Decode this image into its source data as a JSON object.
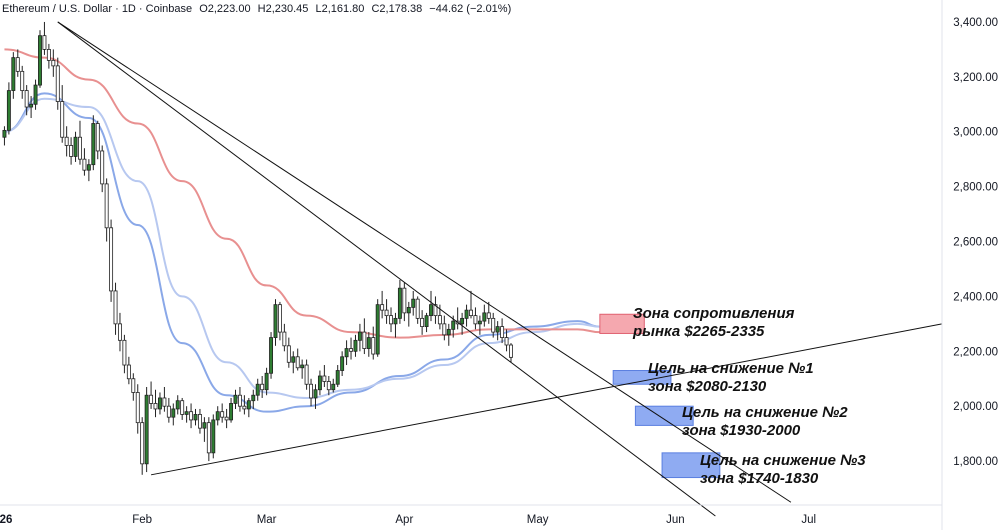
{
  "header": {
    "symbol": "Ethereum / U.S. Dollar · 1D · Coinbase",
    "open": "O2,223.00",
    "high": "H2,230.45",
    "low": "L2,161.80",
    "close": "C2,178.38",
    "change": "−44.62 (−2.01%)"
  },
  "colors": {
    "bull": "#2e7d32",
    "bear": "#ffffff",
    "candle_border": "#222222",
    "ema_fast": "#8aa8e8",
    "ema_slow": "#e89090",
    "resistance_zone": "#f28b94",
    "target_zone": "#7b9cf0",
    "trendline": "#111111"
  },
  "annotations": [
    {
      "line1": "Зона сопротивления",
      "line2": "рынка $2265-2335",
      "zone": [
        2265,
        2335
      ],
      "type": "resistance",
      "from": "2026-05-15",
      "to": "2026-05-25"
    },
    {
      "line1": "Цель на снижение №1",
      "line2": "зона $2080-2130",
      "zone": [
        2080,
        2130
      ],
      "type": "target",
      "from": "2026-05-18",
      "to": "2026-05-31"
    },
    {
      "line1": "Цель на снижение №2",
      "line2": "зона $1930-2000",
      "zone": [
        1930,
        2000
      ],
      "type": "target",
      "from": "2026-05-23",
      "to": "2026-06-05"
    },
    {
      "line1": "Цель на снижение №3",
      "line2": "зона $1740-1830",
      "zone": [
        1740,
        1830
      ],
      "type": "target",
      "from": "2026-05-29",
      "to": "2026-06-11"
    }
  ],
  "chart_data": {
    "type": "candlestick",
    "title": "Ethereum / U.S. Dollar · 1D · Coinbase",
    "x_range": [
      "2025-12-31",
      "2026-07-31"
    ],
    "y_range": [
      1640,
      3480
    ],
    "x_ticks": [
      {
        "label": "26",
        "date": "2026-01-01"
      },
      {
        "label": "Feb",
        "date": "2026-02-01"
      },
      {
        "label": "Mar",
        "date": "2026-03-01"
      },
      {
        "label": "Apr",
        "date": "2026-04-01"
      },
      {
        "label": "May",
        "date": "2026-05-01"
      },
      {
        "label": "Jun",
        "date": "2026-06-01"
      },
      {
        "label": "Jul",
        "date": "2026-07-01"
      }
    ],
    "y_ticks": [
      "3,400.00",
      "3,200.00",
      "3,000.00",
      "2,800.00",
      "2,600.00",
      "2,400.00",
      "2,200.00",
      "2,000.00",
      "1,800.00"
    ],
    "y_tick_values": [
      3400,
      3200,
      3000,
      2800,
      2600,
      2400,
      2200,
      2000,
      1800
    ],
    "candles_start": "2026-01-01",
    "candles": [
      [
        2980,
        3020,
        2950,
        3005
      ],
      [
        3005,
        3180,
        2990,
        3150
      ],
      [
        3150,
        3290,
        3120,
        3270
      ],
      [
        3270,
        3300,
        3200,
        3220
      ],
      [
        3220,
        3240,
        3120,
        3150
      ],
      [
        3150,
        3170,
        3060,
        3090
      ],
      [
        3090,
        3130,
        3050,
        3100
      ],
      [
        3100,
        3190,
        3080,
        3170
      ],
      [
        3170,
        3370,
        3160,
        3350
      ],
      [
        3350,
        3400,
        3280,
        3300
      ],
      [
        3300,
        3320,
        3230,
        3260
      ],
      [
        3260,
        3300,
        3200,
        3240
      ],
      [
        3240,
        3270,
        3080,
        3110
      ],
      [
        3110,
        3170,
        2960,
        2980
      ],
      [
        2980,
        3020,
        2910,
        2950
      ],
      [
        2950,
        2980,
        2880,
        2910
      ],
      [
        2910,
        3000,
        2890,
        2980
      ],
      [
        2980,
        3040,
        2880,
        2900
      ],
      [
        2900,
        2940,
        2840,
        2860
      ],
      [
        2860,
        2900,
        2820,
        2880
      ],
      [
        2880,
        3060,
        2860,
        3030
      ],
      [
        3030,
        3040,
        2900,
        2930
      ],
      [
        2930,
        2950,
        2780,
        2810
      ],
      [
        2810,
        2830,
        2600,
        2650
      ],
      [
        2650,
        2680,
        2380,
        2420
      ],
      [
        2420,
        2450,
        2260,
        2300
      ],
      [
        2300,
        2340,
        2200,
        2240
      ],
      [
        2240,
        2260,
        2120,
        2150
      ],
      [
        2150,
        2180,
        2080,
        2100
      ],
      [
        2100,
        2120,
        2020,
        2050
      ],
      [
        2050,
        2080,
        1900,
        1940
      ],
      [
        1940,
        1960,
        1750,
        1790
      ],
      [
        1790,
        2070,
        1760,
        2040
      ],
      [
        2040,
        2090,
        1990,
        2010
      ],
      [
        2010,
        2060,
        1960,
        1990
      ],
      [
        1990,
        2050,
        1970,
        2030
      ],
      [
        2030,
        2070,
        1980,
        2000
      ],
      [
        2000,
        2030,
        1940,
        1960
      ],
      [
        1960,
        2010,
        1930,
        1990
      ],
      [
        1990,
        2040,
        1970,
        2020
      ],
      [
        2020,
        2030,
        1950,
        1970
      ],
      [
        1970,
        2000,
        1940,
        1980
      ],
      [
        1980,
        2010,
        1920,
        1950
      ],
      [
        1950,
        1990,
        1930,
        1970
      ],
      [
        1970,
        1990,
        1900,
        1920
      ],
      [
        1920,
        1960,
        1870,
        1940
      ],
      [
        1940,
        1960,
        1800,
        1830
      ],
      [
        1830,
        1970,
        1810,
        1950
      ],
      [
        1950,
        2000,
        1930,
        1980
      ],
      [
        1980,
        2010,
        1940,
        1960
      ],
      [
        1960,
        1990,
        1920,
        1950
      ],
      [
        1950,
        2030,
        1940,
        2010
      ],
      [
        2010,
        2060,
        1990,
        2040
      ],
      [
        2040,
        2070,
        1980,
        2000
      ],
      [
        2000,
        2040,
        1970,
        1990
      ],
      [
        1990,
        2030,
        1960,
        2020
      ],
      [
        2020,
        2060,
        1990,
        2040
      ],
      [
        2040,
        2100,
        2020,
        2080
      ],
      [
        2080,
        2110,
        2030,
        2060
      ],
      [
        2060,
        2140,
        2040,
        2120
      ],
      [
        2120,
        2270,
        2100,
        2250
      ],
      [
        2250,
        2390,
        2220,
        2370
      ],
      [
        2370,
        2380,
        2240,
        2270
      ],
      [
        2270,
        2300,
        2200,
        2220
      ],
      [
        2220,
        2250,
        2140,
        2160
      ],
      [
        2160,
        2200,
        2120,
        2180
      ],
      [
        2180,
        2210,
        2130,
        2140
      ],
      [
        2140,
        2170,
        2100,
        2150
      ],
      [
        2150,
        2170,
        2060,
        2080
      ],
      [
        2080,
        2100,
        2000,
        2030
      ],
      [
        2030,
        2080,
        1990,
        2060
      ],
      [
        2060,
        2130,
        2040,
        2110
      ],
      [
        2110,
        2150,
        2070,
        2090
      ],
      [
        2090,
        2110,
        2040,
        2060
      ],
      [
        2060,
        2100,
        2050,
        2080
      ],
      [
        2080,
        2150,
        2070,
        2130
      ],
      [
        2130,
        2200,
        2110,
        2180
      ],
      [
        2180,
        2240,
        2150,
        2210
      ],
      [
        2210,
        2250,
        2170,
        2200
      ],
      [
        2200,
        2260,
        2180,
        2240
      ],
      [
        2240,
        2300,
        2200,
        2270
      ],
      [
        2270,
        2320,
        2190,
        2210
      ],
      [
        2210,
        2270,
        2180,
        2250
      ],
      [
        2250,
        2290,
        2170,
        2190
      ],
      [
        2190,
        2390,
        2180,
        2370
      ],
      [
        2370,
        2420,
        2320,
        2350
      ],
      [
        2350,
        2390,
        2300,
        2330
      ],
      [
        2330,
        2360,
        2270,
        2300
      ],
      [
        2300,
        2340,
        2250,
        2320
      ],
      [
        2320,
        2460,
        2300,
        2430
      ],
      [
        2430,
        2450,
        2310,
        2340
      ],
      [
        2340,
        2380,
        2290,
        2360
      ],
      [
        2360,
        2420,
        2330,
        2390
      ],
      [
        2390,
        2400,
        2300,
        2320
      ],
      [
        2320,
        2350,
        2260,
        2290
      ],
      [
        2290,
        2340,
        2270,
        2330
      ],
      [
        2330,
        2420,
        2310,
        2370
      ],
      [
        2370,
        2400,
        2300,
        2330
      ],
      [
        2330,
        2370,
        2280,
        2300
      ],
      [
        2300,
        2330,
        2240,
        2260
      ],
      [
        2260,
        2300,
        2220,
        2280
      ],
      [
        2280,
        2330,
        2250,
        2310
      ],
      [
        2310,
        2360,
        2280,
        2300
      ],
      [
        2300,
        2340,
        2260,
        2320
      ],
      [
        2320,
        2370,
        2290,
        2350
      ],
      [
        2350,
        2420,
        2320,
        2330
      ],
      [
        2330,
        2360,
        2280,
        2300
      ],
      [
        2300,
        2330,
        2260,
        2310
      ],
      [
        2310,
        2370,
        2290,
        2340
      ],
      [
        2340,
        2380,
        2300,
        2320
      ],
      [
        2320,
        2340,
        2250,
        2270
      ],
      [
        2270,
        2310,
        2240,
        2290
      ],
      [
        2290,
        2320,
        2230,
        2250
      ],
      [
        2250,
        2280,
        2200,
        2223
      ],
      [
        2223,
        2230,
        2160,
        2178
      ]
    ],
    "series": [
      {
        "name": "EMA fast",
        "color": "#8aa8e8",
        "points": [
          [
            "2026-01-01",
            3000
          ],
          [
            "2026-01-10",
            3140
          ],
          [
            "2026-01-20",
            3050
          ],
          [
            "2026-01-31",
            2660
          ],
          [
            "2026-02-10",
            2230
          ],
          [
            "2026-02-20",
            2040
          ],
          [
            "2026-03-01",
            1980
          ],
          [
            "2026-03-10",
            2000
          ],
          [
            "2026-03-20",
            2050
          ],
          [
            "2026-03-31",
            2110
          ],
          [
            "2026-04-10",
            2170
          ],
          [
            "2026-04-20",
            2260
          ],
          [
            "2026-04-30",
            2290
          ],
          [
            "2026-05-10",
            2310
          ],
          [
            "2026-05-15",
            2290
          ]
        ]
      },
      {
        "name": "EMA mid",
        "color": "#b7c8f0",
        "points": [
          [
            "2026-01-01",
            3000
          ],
          [
            "2026-01-10",
            3120
          ],
          [
            "2026-01-20",
            3090
          ],
          [
            "2026-01-31",
            2820
          ],
          [
            "2026-02-10",
            2400
          ],
          [
            "2026-02-20",
            2160
          ],
          [
            "2026-03-01",
            2050
          ],
          [
            "2026-03-10",
            2030
          ],
          [
            "2026-03-20",
            2060
          ],
          [
            "2026-03-31",
            2100
          ],
          [
            "2026-04-10",
            2150
          ],
          [
            "2026-04-20",
            2230
          ],
          [
            "2026-04-30",
            2270
          ],
          [
            "2026-05-10",
            2300
          ],
          [
            "2026-05-15",
            2290
          ]
        ]
      },
      {
        "name": "EMA slow",
        "color": "#e89090",
        "points": [
          [
            "2026-01-01",
            3300
          ],
          [
            "2026-01-10",
            3270
          ],
          [
            "2026-01-20",
            3190
          ],
          [
            "2026-01-31",
            3030
          ],
          [
            "2026-02-10",
            2820
          ],
          [
            "2026-02-20",
            2610
          ],
          [
            "2026-03-01",
            2440
          ],
          [
            "2026-03-10",
            2330
          ],
          [
            "2026-03-20",
            2270
          ],
          [
            "2026-03-31",
            2250
          ],
          [
            "2026-04-10",
            2260
          ],
          [
            "2026-04-20",
            2280
          ],
          [
            "2026-04-30",
            2280
          ],
          [
            "2026-05-10",
            2280
          ],
          [
            "2026-05-15",
            2270
          ]
        ]
      }
    ],
    "trendlines": [
      {
        "name": "descending-line-steep",
        "from": [
          "2026-01-13",
          3400
        ],
        "to": [
          "2026-06-10",
          1600
        ]
      },
      {
        "name": "descending-line-shallow",
        "from": [
          "2026-01-13",
          3400
        ],
        "to": [
          "2026-06-27",
          1650
        ]
      },
      {
        "name": "ascending-support-line",
        "from": [
          "2026-02-03",
          1750
        ],
        "to": [
          "2026-07-31",
          2300
        ]
      }
    ]
  }
}
